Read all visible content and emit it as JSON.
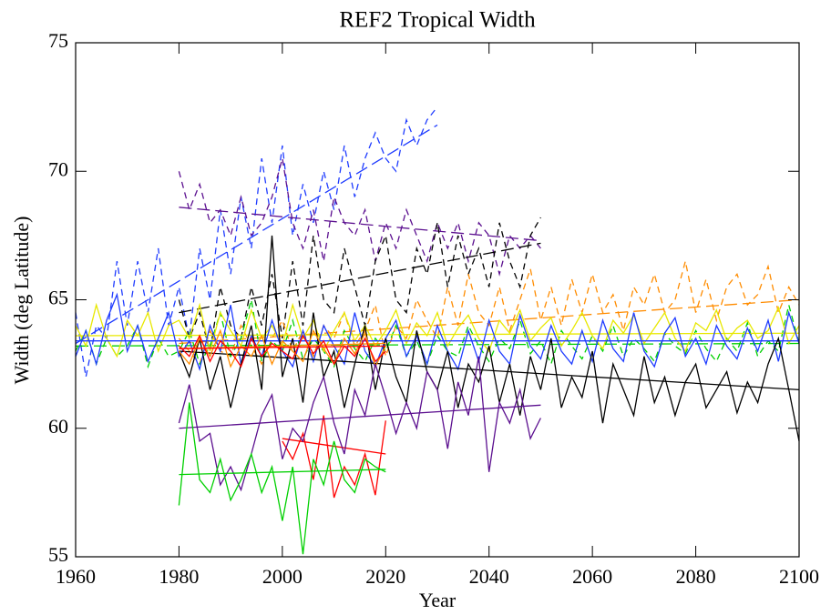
{
  "chart_data": {
    "type": "line",
    "title": "REF2 Tropical Width",
    "x_label": "Year",
    "y_label": "Width (deg Latitude)",
    "xlim": [
      1960,
      2100
    ],
    "xticks": [
      1960,
      1980,
      2000,
      2020,
      2040,
      2060,
      2080,
      2100
    ],
    "ylim": [
      55,
      75
    ],
    "yticks": [
      55,
      60,
      65,
      70,
      75
    ],
    "x": [
      1960,
      1962,
      1964,
      1966,
      1968,
      1970,
      1972,
      1974,
      1976,
      1978,
      1980,
      1982,
      1984,
      1986,
      1988,
      1990,
      1992,
      1994,
      1996,
      1998,
      2000,
      2002,
      2004,
      2006,
      2008,
      2010,
      2012,
      2014,
      2016,
      2018,
      2020,
      2022,
      2024,
      2026,
      2028,
      2030,
      2032,
      2034,
      2036,
      2038,
      2040,
      2042,
      2044,
      2046,
      2048,
      2050,
      2052,
      2054,
      2056,
      2058,
      2060,
      2062,
      2064,
      2066,
      2068,
      2070,
      2072,
      2074,
      2076,
      2078,
      2080,
      2082,
      2084,
      2086,
      2088,
      2090,
      2092,
      2094,
      2096,
      2098,
      2100
    ],
    "series": [
      {
        "color": "#1f3cff",
        "dashed": true,
        "trend": [
          63.3,
          71.8
        ],
        "values": [
          64.5,
          62.0,
          64.0,
          63.5,
          66.5,
          64.0,
          66.5,
          64.5,
          67.0,
          64.0,
          65.5,
          63.5,
          67.0,
          65.0,
          68.5,
          66.0,
          69.0,
          67.0,
          70.5,
          68.0,
          71.0,
          67.5,
          69.5,
          68.0,
          70.0,
          68.5,
          71.0,
          69.0,
          70.5,
          71.5,
          70.5,
          70.0,
          72.0,
          71.0,
          72.0,
          72.5,
          null,
          null,
          null,
          null,
          null,
          null,
          null,
          null,
          null,
          null,
          null,
          null,
          null,
          null,
          null,
          null,
          null,
          null,
          null,
          null,
          null,
          null,
          null,
          null,
          null,
          null,
          null,
          null,
          null,
          null,
          null,
          null,
          null,
          null,
          null
        ]
      },
      {
        "color": "#5b0f8f",
        "dashed": true,
        "trend": [
          68.6,
          67.3
        ],
        "values": [
          null,
          null,
          null,
          null,
          null,
          null,
          null,
          null,
          null,
          null,
          70.0,
          68.5,
          69.5,
          68.0,
          68.5,
          67.5,
          69.0,
          67.5,
          68.0,
          69.0,
          70.5,
          68.0,
          67.0,
          68.5,
          66.5,
          69.0,
          68.0,
          67.5,
          68.5,
          66.5,
          68.0,
          67.0,
          68.5,
          67.5,
          66.5,
          68.0,
          67.0,
          68.0,
          66.5,
          68.0,
          67.5,
          66.0,
          67.5,
          67.0,
          67.5,
          67.0,
          null,
          null,
          null,
          null,
          null,
          null,
          null,
          null,
          null,
          null,
          null,
          null,
          null,
          null,
          null,
          null,
          null,
          null,
          null,
          null,
          null,
          null,
          null,
          null,
          null
        ]
      },
      {
        "color": "#000000",
        "dashed": true,
        "trend": [
          64.5,
          67.2
        ],
        "values": [
          null,
          null,
          null,
          null,
          null,
          null,
          null,
          null,
          null,
          null,
          65.0,
          63.5,
          64.5,
          63.0,
          65.5,
          64.0,
          63.5,
          65.5,
          64.0,
          66.0,
          63.5,
          66.5,
          64.0,
          67.5,
          65.0,
          64.5,
          67.0,
          65.5,
          64.0,
          66.5,
          67.5,
          65.0,
          64.5,
          67.0,
          66.0,
          68.0,
          65.5,
          67.5,
          66.0,
          67.0,
          65.5,
          68.0,
          66.5,
          65.5,
          67.5,
          68.2,
          null,
          null,
          null,
          null,
          null,
          null,
          null,
          null,
          null,
          null,
          null,
          null,
          null,
          null,
          null,
          null,
          null,
          null,
          null,
          null,
          null,
          null,
          null,
          null,
          null
        ]
      },
      {
        "color": "#ff8c00",
        "dashed": true,
        "trend": [
          63.3,
          65.0
        ],
        "values": [
          null,
          null,
          null,
          null,
          null,
          null,
          null,
          null,
          null,
          null,
          63.5,
          63.0,
          62.5,
          63.8,
          63.0,
          62.8,
          64.0,
          63.2,
          62.5,
          63.5,
          64.2,
          63.0,
          63.8,
          62.8,
          64.0,
          63.5,
          64.5,
          63.2,
          63.8,
          64.8,
          62.8,
          64.0,
          63.5,
          65.0,
          64.2,
          63.5,
          65.5,
          64.0,
          66.0,
          64.5,
          64.0,
          65.5,
          63.8,
          65.0,
          66.2,
          64.2,
          65.5,
          64.0,
          65.8,
          64.5,
          66.0,
          64.5,
          65.2,
          63.8,
          65.5,
          64.8,
          66.0,
          64.5,
          65.0,
          66.5,
          64.5,
          65.8,
          64.2,
          65.5,
          66.0,
          64.8,
          65.2,
          66.3,
          64.5,
          65.5,
          64.8
        ]
      },
      {
        "color": "#00d000",
        "dashed": true,
        "trend": [
          63.2,
          63.3
        ],
        "values": [
          63.0,
          63.8,
          62.5,
          63.5,
          62.8,
          63.2,
          64.0,
          62.4,
          63.5,
          62.8,
          63.0,
          63.8,
          62.5,
          63.2,
          64.5,
          62.8,
          63.5,
          65.0,
          62.6,
          63.4,
          63.0,
          64.2,
          62.7,
          63.5,
          63.0,
          62.4,
          63.8,
          63.1,
          62.6,
          63.5,
          63.0,
          64.0,
          62.8,
          63.4,
          62.5,
          63.6,
          63.0,
          62.8,
          64.0,
          63.2,
          62.6,
          63.5,
          63.1,
          64.2,
          62.9,
          63.4,
          62.5,
          63.8,
          63.2,
          62.7,
          63.6,
          63.0,
          64.0,
          62.8,
          63.5,
          63.1,
          62.6,
          63.7,
          63.2,
          62.9,
          63.8,
          63.1,
          62.6,
          63.5,
          63.0,
          64.1,
          62.8,
          63.4,
          63.0,
          64.8,
          63.3
        ]
      },
      {
        "color": "#e8e800",
        "dashed": false,
        "trend": [
          63.6,
          63.7
        ],
        "values": [
          64.0,
          63.2,
          64.8,
          63.5,
          62.8,
          64.2,
          63.6,
          64.5,
          63.0,
          64.0,
          64.2,
          63.5,
          64.8,
          63.0,
          64.5,
          63.8,
          63.2,
          64.6,
          63.5,
          64.0,
          63.2,
          64.8,
          63.5,
          64.2,
          63.0,
          63.8,
          64.5,
          63.4,
          64.0,
          63.2,
          63.8,
          64.6,
          63.3,
          64.1,
          63.6,
          64.5,
          63.2,
          63.9,
          64.4,
          63.5,
          63.0,
          64.2,
          63.7,
          64.6,
          63.4,
          63.9,
          64.3,
          63.2,
          63.8,
          64.5,
          63.6,
          63.1,
          64.2,
          63.7,
          64.4,
          63.3,
          63.9,
          64.5,
          63.5,
          63.0,
          64.1,
          63.8,
          64.6,
          63.4,
          63.9,
          64.2,
          63.5,
          63.8,
          64.7,
          63.3,
          64.0
        ]
      },
      {
        "color": "#1f3cff",
        "dashed": false,
        "trend": [
          63.4,
          63.4
        ],
        "values": [
          62.8,
          63.8,
          62.5,
          64.2,
          65.2,
          63.0,
          64.0,
          62.6,
          63.5,
          64.5,
          62.8,
          63.4,
          62.3,
          64.0,
          63.0,
          64.8,
          62.5,
          63.6,
          62.8,
          64.2,
          63.0,
          62.4,
          63.8,
          62.6,
          64.0,
          63.2,
          62.5,
          64.5,
          63.0,
          62.4,
          63.5,
          64.2,
          62.8,
          63.6,
          62.5,
          64.0,
          63.0,
          62.3,
          63.8,
          62.6,
          64.2,
          63.0,
          62.5,
          64.4,
          63.2,
          62.7,
          64.0,
          63.0,
          62.5,
          63.8,
          62.6,
          64.2,
          63.1,
          62.6,
          64.5,
          63.0,
          62.4,
          63.7,
          64.3,
          62.8,
          63.5,
          62.5,
          64.0,
          63.2,
          62.7,
          63.9,
          63.0,
          64.2,
          62.6,
          64.5,
          63.3
        ]
      },
      {
        "color": "#000000",
        "dashed": false,
        "trend": [
          63.0,
          61.5
        ],
        "values": [
          null,
          null,
          null,
          null,
          null,
          null,
          null,
          null,
          null,
          null,
          63.0,
          62.0,
          63.5,
          61.5,
          62.8,
          60.8,
          62.5,
          64.0,
          61.5,
          67.5,
          62.0,
          63.5,
          61.0,
          64.5,
          62.0,
          63.0,
          60.8,
          62.5,
          64.0,
          61.5,
          63.5,
          62.0,
          61.0,
          63.8,
          62.2,
          61.5,
          63.0,
          60.8,
          62.5,
          61.8,
          63.2,
          61.0,
          62.5,
          60.5,
          62.8,
          61.5,
          63.5,
          60.8,
          62.0,
          61.2,
          63.0,
          60.2,
          62.5,
          61.5,
          60.5,
          62.8,
          61.0,
          62.0,
          60.5,
          61.8,
          62.5,
          60.8,
          61.5,
          62.2,
          60.6,
          61.8,
          61.0,
          62.5,
          63.5,
          61.5,
          59.5
        ]
      },
      {
        "color": "#ff8c00",
        "dashed": false,
        "trend": [
          63.1,
          63.3
        ],
        "values": [
          null,
          null,
          null,
          null,
          null,
          null,
          null,
          null,
          null,
          null,
          63.0,
          62.5,
          63.5,
          62.8,
          63.8,
          62.4,
          63.2,
          62.8,
          63.6,
          62.5,
          63.4,
          63.0,
          62.6,
          63.8,
          63.1,
          62.5,
          63.5,
          62.9,
          63.7,
          62.4,
          63.2,
          null,
          null,
          null,
          null,
          null,
          null,
          null,
          null,
          null,
          null,
          null,
          null,
          null,
          null,
          null,
          null,
          null,
          null,
          null,
          null,
          null,
          null,
          null,
          null,
          null,
          null,
          null,
          null,
          null,
          null,
          null,
          null,
          null,
          null,
          null,
          null,
          null,
          null,
          null,
          null
        ]
      },
      {
        "color": "#ff0000",
        "dashed": false,
        "trend": [
          63.1,
          63.2
        ],
        "values": [
          null,
          null,
          null,
          null,
          null,
          null,
          null,
          null,
          null,
          null,
          63.2,
          62.8,
          63.6,
          62.6,
          63.4,
          63.0,
          62.4,
          63.5,
          62.8,
          63.3,
          63.0,
          62.7,
          63.6,
          62.9,
          63.4,
          62.5,
          63.2,
          62.8,
          63.5,
          62.6,
          63.0,
          null,
          null,
          null,
          null,
          null,
          null,
          null,
          null,
          null,
          null,
          null,
          null,
          null,
          null,
          null,
          null,
          null,
          null,
          null,
          null,
          null,
          null,
          null,
          null,
          null,
          null,
          null,
          null,
          null,
          null,
          null,
          null,
          null,
          null,
          null,
          null,
          null,
          null,
          null,
          null
        ]
      },
      {
        "color": "#ff0000",
        "dashed": false,
        "trend": [
          59.6,
          59.0
        ],
        "values": [
          null,
          null,
          null,
          null,
          null,
          null,
          null,
          null,
          null,
          null,
          null,
          null,
          null,
          null,
          null,
          null,
          null,
          null,
          null,
          null,
          59.5,
          58.8,
          59.8,
          58.0,
          60.5,
          57.3,
          58.5,
          57.8,
          59.0,
          57.4,
          60.3,
          null,
          null,
          null,
          null,
          null,
          null,
          null,
          null,
          null,
          null,
          null,
          null,
          null,
          null,
          null,
          null,
          null,
          null,
          null,
          null,
          null,
          null,
          null,
          null,
          null,
          null,
          null,
          null,
          null,
          null,
          null,
          null,
          null,
          null,
          null,
          null,
          null,
          null,
          null,
          null
        ]
      },
      {
        "color": "#5b0f8f",
        "dashed": false,
        "trend": [
          60.0,
          60.9
        ],
        "values": [
          null,
          null,
          null,
          null,
          null,
          null,
          null,
          null,
          null,
          null,
          60.2,
          61.7,
          59.5,
          59.8,
          57.8,
          58.5,
          57.6,
          59.0,
          60.5,
          61.3,
          58.8,
          60.0,
          59.5,
          61.0,
          62.0,
          60.2,
          59.0,
          61.5,
          60.5,
          62.5,
          61.2,
          59.8,
          61.0,
          60.0,
          62.2,
          61.5,
          59.2,
          61.8,
          60.5,
          62.8,
          58.3,
          61.0,
          60.2,
          61.5,
          59.6,
          60.4,
          null,
          null,
          null,
          null,
          null,
          null,
          null,
          null,
          null,
          null,
          null,
          null,
          null,
          null,
          null,
          null,
          null,
          null,
          null,
          null,
          null,
          null,
          null,
          null,
          null
        ]
      },
      {
        "color": "#00d000",
        "dashed": false,
        "trend": [
          58.2,
          58.4
        ],
        "values": [
          null,
          null,
          null,
          null,
          null,
          null,
          null,
          null,
          null,
          null,
          57.0,
          61.0,
          58.0,
          57.5,
          58.8,
          57.2,
          58.0,
          59.0,
          57.5,
          58.5,
          56.4,
          58.5,
          55.1,
          58.8,
          57.8,
          59.5,
          58.0,
          57.5,
          58.8,
          58.5,
          58.3,
          null,
          null,
          null,
          null,
          null,
          null,
          null,
          null,
          null,
          null,
          null,
          null,
          null,
          null,
          null,
          null,
          null,
          null,
          null,
          null,
          null,
          null,
          null,
          null,
          null,
          null,
          null,
          null,
          null,
          null,
          null,
          null,
          null,
          null,
          null,
          null,
          null,
          null,
          null,
          null
        ]
      }
    ]
  }
}
